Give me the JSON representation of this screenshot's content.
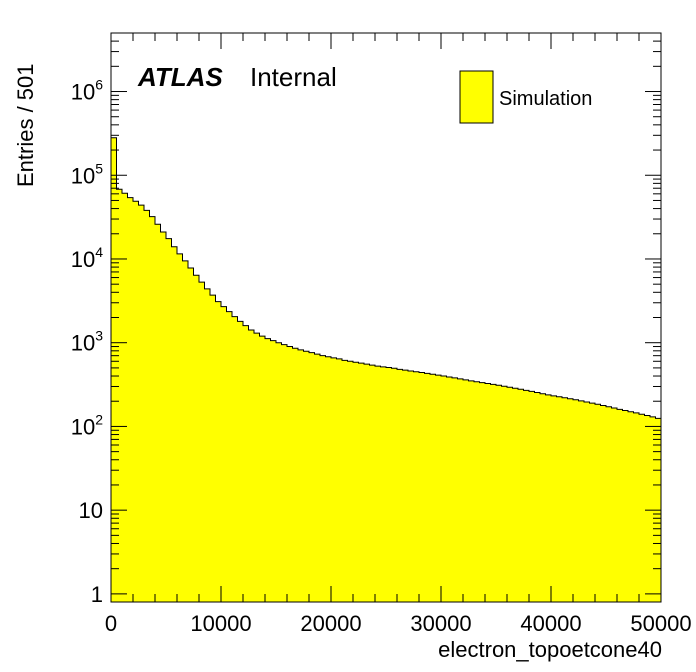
{
  "chart_data": {
    "type": "bar",
    "title": "",
    "xlabel": "electron_topoetcone40",
    "ylabel": "Entries / 501",
    "label_main": "ATLAS",
    "label_sub": "Internal",
    "legend": {
      "entries": [
        "Simulation"
      ],
      "placement": "top-right"
    },
    "x_range": [
      0,
      50000
    ],
    "y_range": [
      0.8,
      5000000
    ],
    "y_scale": "log",
    "bin_width": 501,
    "x_ticks": [
      {
        "value": 0,
        "label": "0"
      },
      {
        "value": 10000,
        "label": "10000"
      },
      {
        "value": 20000,
        "label": "20000"
      },
      {
        "value": 30000,
        "label": "30000"
      },
      {
        "value": 40000,
        "label": "40000"
      },
      {
        "value": 50000,
        "label": "50000"
      }
    ],
    "y_ticks": [
      {
        "value": 1,
        "label": "1",
        "exp": ""
      },
      {
        "value": 10,
        "label": "10",
        "exp": ""
      },
      {
        "value": 100,
        "label": "10",
        "exp": "2"
      },
      {
        "value": 1000,
        "label": "10",
        "exp": "3"
      },
      {
        "value": 10000,
        "label": "10",
        "exp": "4"
      },
      {
        "value": 100000,
        "label": "10",
        "exp": "5"
      },
      {
        "value": 1000000,
        "label": "10",
        "exp": "6"
      }
    ],
    "series": [
      {
        "name": "Simulation",
        "color": "#ffff00",
        "values": [
          280000,
          68000,
          61000,
          54000,
          49000,
          44000,
          38000,
          32000,
          26000,
          21000,
          17500,
          14000,
          11500,
          9500,
          7800,
          6400,
          5300,
          4400,
          3700,
          3100,
          2700,
          2350,
          2050,
          1800,
          1600,
          1420,
          1300,
          1200,
          1120,
          1060,
          1000,
          950,
          900,
          860,
          820,
          790,
          760,
          730,
          700,
          680,
          660,
          640,
          615,
          600,
          585,
          570,
          555,
          540,
          525,
          515,
          505,
          495,
          480,
          470,
          460,
          450,
          440,
          430,
          420,
          410,
          400,
          390,
          380,
          370,
          360,
          350,
          342,
          334,
          326,
          318,
          310,
          302,
          294,
          286,
          278,
          270,
          262,
          254,
          246,
          238,
          232,
          226,
          220,
          214,
          208,
          202,
          196,
          190,
          184,
          178,
          172,
          166,
          160,
          155,
          150,
          145,
          140,
          135,
          130,
          125
        ]
      }
    ]
  }
}
